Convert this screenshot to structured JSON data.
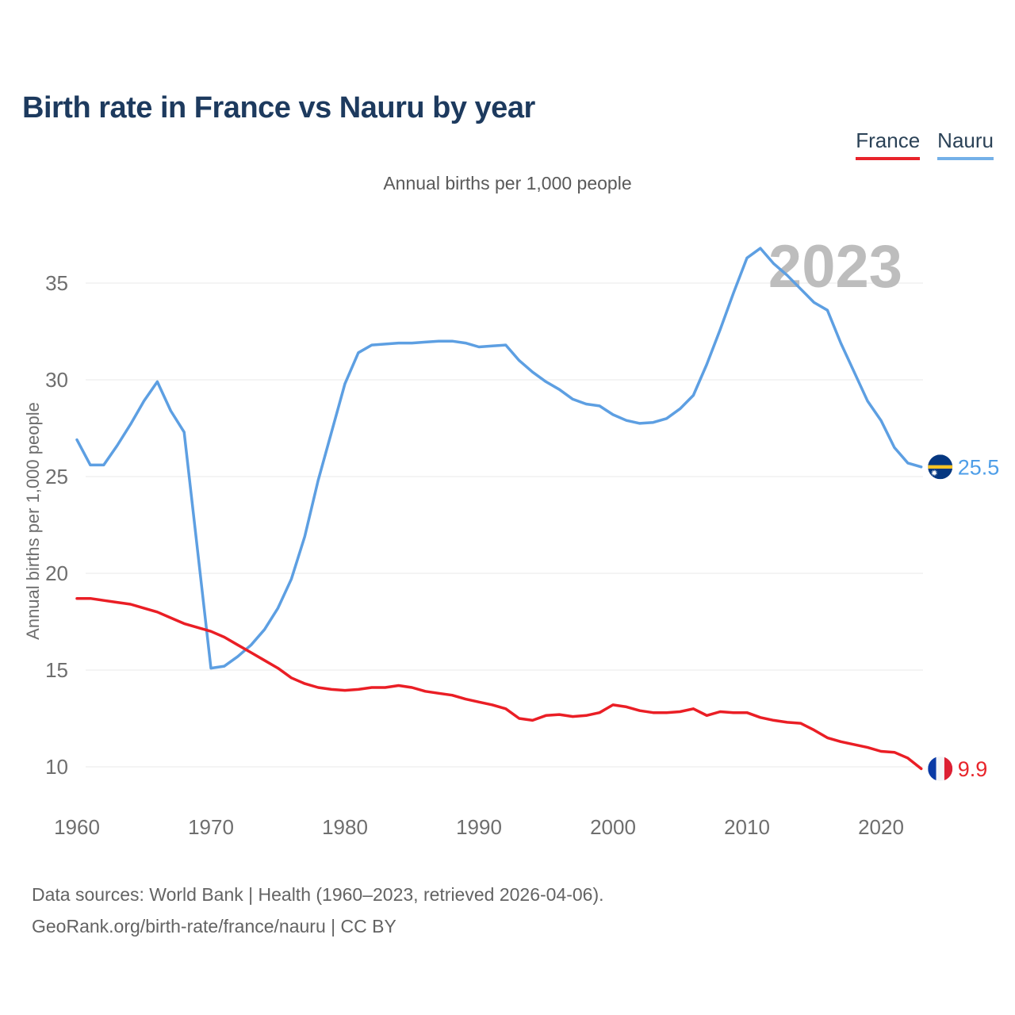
{
  "title": "Birth rate in France vs Nauru by year",
  "subtitle": "Annual births per 1,000 people",
  "y_axis_title": "Annual births per 1,000 people",
  "watermark": "2023",
  "legend": {
    "items": [
      {
        "label": "France",
        "color": "#e8232b"
      },
      {
        "label": "Nauru",
        "color": "#74b0e8"
      }
    ]
  },
  "footer": {
    "line1": "Data sources: World Bank | Health (1960–2023, retrieved 2026-04-06).",
    "line2": "GeoRank.org/birth-rate/france/nauru | CC BY"
  },
  "colors": {
    "title_text": "#1d3a5e",
    "axis_text": "#6e6e6e",
    "gridline": "#e8e8e8",
    "watermark": "#bdbdbd",
    "france_line": "#ea1e25",
    "nauru_line": "#5d9fe2"
  },
  "chart_data": {
    "type": "line",
    "title": "Birth rate in France vs Nauru by year",
    "unit_label": "Annual births per 1,000 people",
    "x_start": 1960,
    "x_end": 2023,
    "x_ticks": [
      1960,
      1970,
      1980,
      1990,
      2000,
      2010,
      2020
    ],
    "y_ticks": [
      10,
      15,
      20,
      25,
      30,
      35
    ],
    "ylim": [
      9,
      38
    ],
    "grid": "horizontal-only",
    "legend_position": "top-right",
    "series": [
      {
        "name": "France",
        "color": "#ea1e25",
        "label_color": "#e8252b",
        "end_label": "9.9",
        "end_value": 9.9,
        "values": [
          18.7,
          18.7,
          18.6,
          18.5,
          18.4,
          18.2,
          18.0,
          17.7,
          17.4,
          17.2,
          17.0,
          16.7,
          16.3,
          15.9,
          15.5,
          15.1,
          14.6,
          14.3,
          14.1,
          14.0,
          13.95,
          14.0,
          14.1,
          14.1,
          14.2,
          14.1,
          13.9,
          13.8,
          13.7,
          13.5,
          13.35,
          13.2,
          13.0,
          12.5,
          12.4,
          12.65,
          12.7,
          12.6,
          12.65,
          12.8,
          13.2,
          13.1,
          12.9,
          12.8,
          12.8,
          12.85,
          13.0,
          12.65,
          12.85,
          12.8,
          12.8,
          12.55,
          12.4,
          12.3,
          12.25,
          11.9,
          11.5,
          11.3,
          11.15,
          11.0,
          10.8,
          10.75,
          10.45,
          9.9
        ]
      },
      {
        "name": "Nauru",
        "color": "#5d9fe2",
        "label_color": "#4e9ee8",
        "end_label": "25.5",
        "end_value": 25.5,
        "values": [
          26.9,
          25.6,
          25.6,
          26.6,
          27.7,
          28.9,
          29.9,
          28.4,
          27.3,
          21.2,
          15.1,
          15.2,
          15.7,
          16.3,
          17.1,
          18.2,
          19.7,
          21.9,
          24.8,
          27.3,
          29.8,
          31.4,
          31.8,
          31.85,
          31.9,
          31.9,
          31.95,
          32.0,
          32.0,
          31.9,
          31.7,
          31.75,
          31.8,
          31.0,
          30.4,
          29.9,
          29.5,
          29.0,
          28.75,
          28.65,
          28.2,
          27.9,
          27.75,
          27.8,
          28.0,
          28.5,
          29.2,
          30.8,
          32.6,
          34.5,
          36.3,
          36.8,
          36.0,
          35.4,
          34.7,
          34.0,
          33.6,
          31.9,
          30.4,
          28.9,
          27.9,
          26.5,
          25.7,
          25.5
        ]
      }
    ]
  }
}
